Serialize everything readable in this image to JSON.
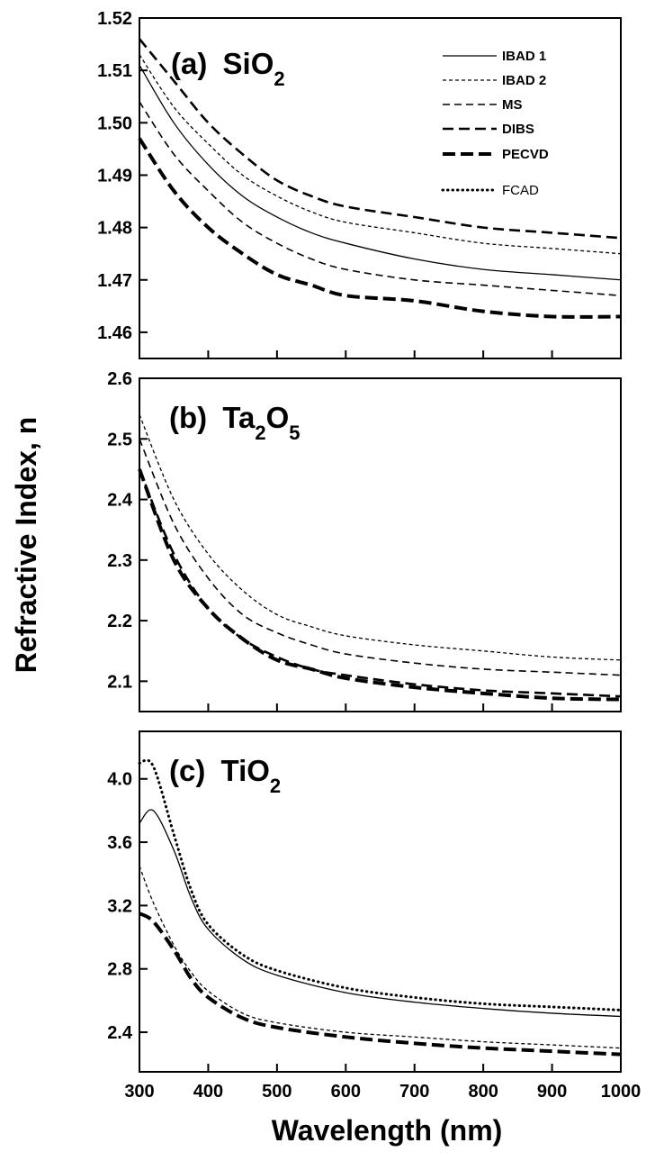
{
  "chart_data": {
    "type": "line",
    "xlabel": "Wavelength (nm)",
    "ylabel": "Refractive Index, n",
    "xlim": [
      300,
      1000
    ],
    "xticks": [
      "300",
      "400",
      "500",
      "600",
      "700",
      "800",
      "900",
      "1000"
    ],
    "xtick_values": [
      300,
      400,
      500,
      600,
      700,
      800,
      900,
      1000
    ],
    "legend": {
      "placement": "top-right of panel (a)",
      "entries": [
        {
          "label": "IBAD 1",
          "style": "solid"
        },
        {
          "label": "IBAD 2",
          "style": "fine-dash"
        },
        {
          "label": "MS",
          "style": "dash"
        },
        {
          "label": "DIBS",
          "style": "medium-dash"
        },
        {
          "label": "PECVD",
          "style": "thick-dash"
        },
        {
          "label": "FCAD",
          "style": "dotted"
        }
      ]
    },
    "panels": [
      {
        "id": "a",
        "label_prefix": "(a)",
        "label_main": "SiO",
        "label_sub1": "2",
        "ylim": [
          1.455,
          1.52
        ],
        "yticks": [
          "1.46",
          "1.47",
          "1.48",
          "1.49",
          "1.50",
          "1.51",
          "1.52"
        ],
        "ytick_values": [
          1.46,
          1.47,
          1.48,
          1.49,
          1.5,
          1.51,
          1.52
        ],
        "x": [
          300,
          350,
          400,
          450,
          500,
          550,
          600,
          700,
          800,
          900,
          1000
        ],
        "series": [
          {
            "name": "IBAD 1",
            "values": [
              1.511,
              1.5,
              1.492,
              1.486,
              1.482,
              1.479,
              1.477,
              1.474,
              1.472,
              1.471,
              1.47
            ]
          },
          {
            "name": "IBAD 2",
            "values": [
              1.513,
              1.503,
              1.496,
              1.49,
              1.486,
              1.483,
              1.481,
              1.479,
              1.477,
              1.476,
              1.475
            ]
          },
          {
            "name": "MS",
            "values": [
              1.504,
              1.494,
              1.487,
              1.481,
              1.477,
              1.474,
              1.472,
              1.47,
              1.469,
              1.468,
              1.467
            ]
          },
          {
            "name": "DIBS",
            "values": [
              1.516,
              1.508,
              1.5,
              1.494,
              1.489,
              1.486,
              1.484,
              1.482,
              1.48,
              1.479,
              1.478
            ]
          },
          {
            "name": "PECVD",
            "values": [
              1.497,
              1.487,
              1.48,
              1.475,
              1.471,
              1.469,
              1.467,
              1.466,
              1.464,
              1.463,
              1.463
            ]
          }
        ]
      },
      {
        "id": "b",
        "label_prefix": "(b)",
        "label_main": "Ta",
        "label_sub1": "2",
        "label_main2": "O",
        "label_sub2": "5",
        "ylim": [
          2.05,
          2.6
        ],
        "yticks": [
          "2.1",
          "2.2",
          "2.3",
          "2.4",
          "2.5",
          "2.6"
        ],
        "ytick_values": [
          2.1,
          2.2,
          2.3,
          2.4,
          2.5,
          2.6
        ],
        "x": [
          300,
          350,
          400,
          450,
          500,
          550,
          600,
          700,
          800,
          900,
          1000
        ],
        "series": [
          {
            "name": "IBAD 2",
            "values": [
              2.54,
              2.4,
              2.31,
              2.25,
              2.21,
              2.19,
              2.175,
              2.16,
              2.15,
              2.14,
              2.135
            ]
          },
          {
            "name": "MS",
            "values": [
              2.5,
              2.36,
              2.27,
              2.21,
              2.18,
              2.16,
              2.145,
              2.13,
              2.12,
              2.115,
              2.11
            ]
          },
          {
            "name": "DIBS",
            "values": [
              2.45,
              2.31,
              2.22,
              2.17,
              2.14,
              2.12,
              2.11,
              2.095,
              2.085,
              2.08,
              2.075
            ]
          },
          {
            "name": "PECVD",
            "values": [
              2.45,
              2.3,
              2.22,
              2.17,
              2.135,
              2.12,
              2.105,
              2.09,
              2.08,
              2.072,
              2.07
            ]
          }
        ]
      },
      {
        "id": "c",
        "label_prefix": "(c)",
        "label_main": "TiO",
        "label_sub1": "2",
        "ylim": [
          2.15,
          4.3
        ],
        "yticks": [
          "2.4",
          "2.8",
          "3.2",
          "3.6",
          "4.0"
        ],
        "ytick_values": [
          2.4,
          2.8,
          3.2,
          3.6,
          4.0
        ],
        "x": [
          300,
          320,
          350,
          375,
          400,
          450,
          500,
          600,
          700,
          800,
          900,
          1000
        ],
        "series": [
          {
            "name": "IBAD 1",
            "values": [
              3.72,
              3.8,
              3.55,
              3.25,
              3.05,
              2.86,
              2.76,
              2.65,
              2.59,
              2.55,
              2.52,
              2.5
            ]
          },
          {
            "name": "FCAD",
            "values": [
              4.1,
              4.08,
              3.65,
              3.3,
              3.08,
              2.89,
              2.79,
              2.68,
              2.62,
              2.58,
              2.56,
              2.54
            ]
          },
          {
            "name": "IBAD 2",
            "values": [
              3.45,
              3.22,
              2.95,
              2.78,
              2.66,
              2.52,
              2.46,
              2.4,
              2.37,
              2.34,
              2.32,
              2.3
            ]
          },
          {
            "name": "PECVD",
            "values": [
              3.15,
              3.1,
              2.92,
              2.74,
              2.62,
              2.49,
              2.43,
              2.37,
              2.33,
              2.3,
              2.28,
              2.26
            ]
          }
        ]
      }
    ]
  }
}
